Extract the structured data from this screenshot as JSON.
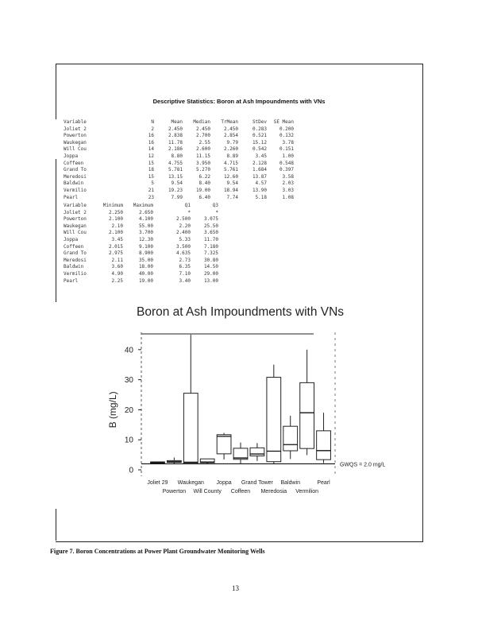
{
  "table_title": "Descriptive Statistics: Boron at Ash Impoundments with VNs",
  "stats1": {
    "headers": [
      "Variable",
      "N",
      "Mean",
      "Median",
      "TrMean",
      "StDev",
      "SE Mean"
    ],
    "rows": [
      [
        "Joliet 2",
        "2",
        "2.450",
        "2.450",
        "2.450",
        "0.283",
        "0.200"
      ],
      [
        "Powerton",
        "16",
        "2.838",
        "2.700",
        "2.854",
        "0.521",
        "0.132"
      ],
      [
        "Waukegan",
        "16",
        "11.78",
        "2.55",
        "9.79",
        "15.12",
        "3.78"
      ],
      [
        "Will Cou",
        "14",
        "2.186",
        "2.600",
        "2.260",
        "0.542",
        "0.151"
      ],
      [
        "Joppa",
        "12",
        "8.80",
        "11.15",
        "8.89",
        "3.45",
        "1.00"
      ],
      [
        "Coffeen",
        "15",
        "4.755",
        "3.950",
        "4.715",
        "2.128",
        "0.548"
      ],
      [
        "Grand To",
        "18",
        "5.781",
        "5.270",
        "5.761",
        "1.684",
        "0.397"
      ],
      [
        "Meredosi",
        "15",
        "13.15",
        "6.22",
        "12.60",
        "13.87",
        "3.58"
      ],
      [
        "Baldwin",
        "5",
        "9.54",
        "8.40",
        "9.54",
        "4.57",
        "2.03"
      ],
      [
        "Vermilio",
        "21",
        "19.23",
        "19.00",
        "18.94",
        "13.90",
        "3.03"
      ],
      [
        "Pearl",
        "23",
        "7.99",
        "6.40",
        "7.74",
        "5.18",
        "1.08"
      ]
    ]
  },
  "stats2": {
    "headers": [
      "Variable",
      "Minimum",
      "Maximum",
      "Q1",
      "Q3"
    ],
    "rows": [
      [
        "Joliet 2",
        "2.250",
        "2.650",
        "*",
        "*"
      ],
      [
        "Powerton",
        "2.100",
        "4.100",
        "2.500",
        "3.075"
      ],
      [
        "Waukegan",
        "2.10",
        "55.00",
        "2.20",
        "25.50"
      ],
      [
        "Will Cou",
        "2.100",
        "3.700",
        "2.400",
        "3.650"
      ],
      [
        "Joppa",
        "3.45",
        "12.30",
        "5.33",
        "11.70"
      ],
      [
        "Coffeen",
        "2.015",
        "9.100",
        "3.500",
        "7.180"
      ],
      [
        "Grand To",
        "2.975",
        "8.900",
        "4.635",
        "7.325"
      ],
      [
        "Meredosi",
        "2.11",
        "35.00",
        "2.73",
        "30.80"
      ],
      [
        "Baldwin",
        "3.60",
        "18.00",
        "6.35",
        "14.50"
      ],
      [
        "Vermilio",
        "4.90",
        "40.00",
        "7.10",
        "29.00"
      ],
      [
        "Pearl",
        "2.25",
        "19.00",
        "3.40",
        "13.00"
      ]
    ]
  },
  "chart_data": {
    "type": "boxplot",
    "title": "Boron at Ash Impoundments with VNs",
    "ylabel": "B (mg/L)",
    "ylim": [
      0,
      45
    ],
    "yticks": [
      0,
      10,
      20,
      30,
      40
    ],
    "categories": [
      "Joliet 29",
      "Powerton",
      "Waukegan",
      "Will County",
      "Joppa",
      "Coffeen",
      "Grand Tower",
      "Meredosia",
      "Baldwin",
      "Vermilion",
      "Pearl"
    ],
    "min": [
      2.25,
      2.1,
      2.1,
      2.1,
      3.45,
      2.015,
      2.975,
      2.11,
      3.6,
      4.9,
      2.25
    ],
    "q1": [
      2.25,
      2.5,
      2.2,
      2.4,
      5.33,
      3.5,
      4.635,
      2.73,
      6.35,
      7.1,
      3.4
    ],
    "median": [
      2.45,
      2.7,
      2.55,
      2.6,
      11.15,
      3.95,
      5.27,
      6.22,
      8.4,
      19.0,
      6.4
    ],
    "q3": [
      2.65,
      3.075,
      25.5,
      3.65,
      11.7,
      7.18,
      7.325,
      30.8,
      14.5,
      29.0,
      13.0
    ],
    "max": [
      2.65,
      4.1,
      55.0,
      3.7,
      12.3,
      9.1,
      8.9,
      35.0,
      18.0,
      40.0,
      19.0
    ],
    "reference_line": {
      "value": 2.0,
      "label": "GWQS = 2.0 mg/L"
    }
  },
  "caption": "Figure 7. Boron Concentrations at Power Plant Groundwater Monitoring Wells",
  "page_number": "13"
}
